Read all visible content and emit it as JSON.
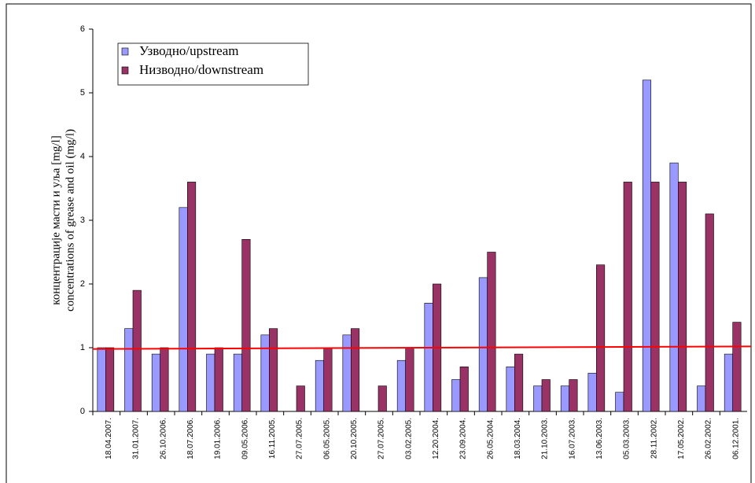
{
  "chart_data": {
    "type": "bar",
    "y_label": [
      "концентрације масти и уља [mg/l]",
      "concentrations of grease and oil (mg/l)"
    ],
    "categories": [
      "18.04.2007.",
      "31.01.2007.",
      "26.10.2006.",
      "18.07.2006.",
      "19.01.2006.",
      "09.05.2006.",
      "16.11.2005.",
      "27.07.2005.",
      "06.05.2005.",
      "20.10.2005.",
      "27.07.2005.",
      "03.02.2005.",
      "12.20.2004.",
      "23.09.2004.",
      "26.05.2004.",
      "18.03.2004.",
      "21.10.2003.",
      "16.07.2003.",
      "13.06.2003.",
      "05.03.2003.",
      "28.11.2002.",
      "17.05.2002.",
      "26.02.2002.",
      "06.12.2001."
    ],
    "series": [
      {
        "name": "Узводно/upstream",
        "color": "#9999ff",
        "values": [
          1.0,
          1.3,
          0.9,
          3.2,
          0.9,
          0.9,
          1.2,
          null,
          0.8,
          1.2,
          null,
          0.8,
          1.7,
          0.5,
          2.1,
          0.7,
          0.4,
          0.4,
          0.6,
          0.3,
          5.2,
          3.9,
          0.4,
          0.9
        ]
      },
      {
        "name": "Низводно/downstream",
        "color": "#993366",
        "values": [
          1.0,
          1.9,
          1.0,
          3.6,
          1.0,
          2.7,
          1.3,
          0.4,
          1.0,
          1.3,
          0.4,
          1.0,
          2.0,
          0.7,
          2.5,
          0.9,
          0.5,
          0.5,
          2.3,
          3.6,
          3.6,
          3.6,
          3.1,
          1.4
        ]
      }
    ],
    "trend_line": {
      "color": "#ff0000",
      "values": [
        0.98,
        1.02
      ]
    },
    "ylim": [
      0,
      6
    ],
    "yticks": [
      0,
      1,
      2,
      3,
      4,
      5,
      6
    ],
    "legend": "top-left"
  }
}
